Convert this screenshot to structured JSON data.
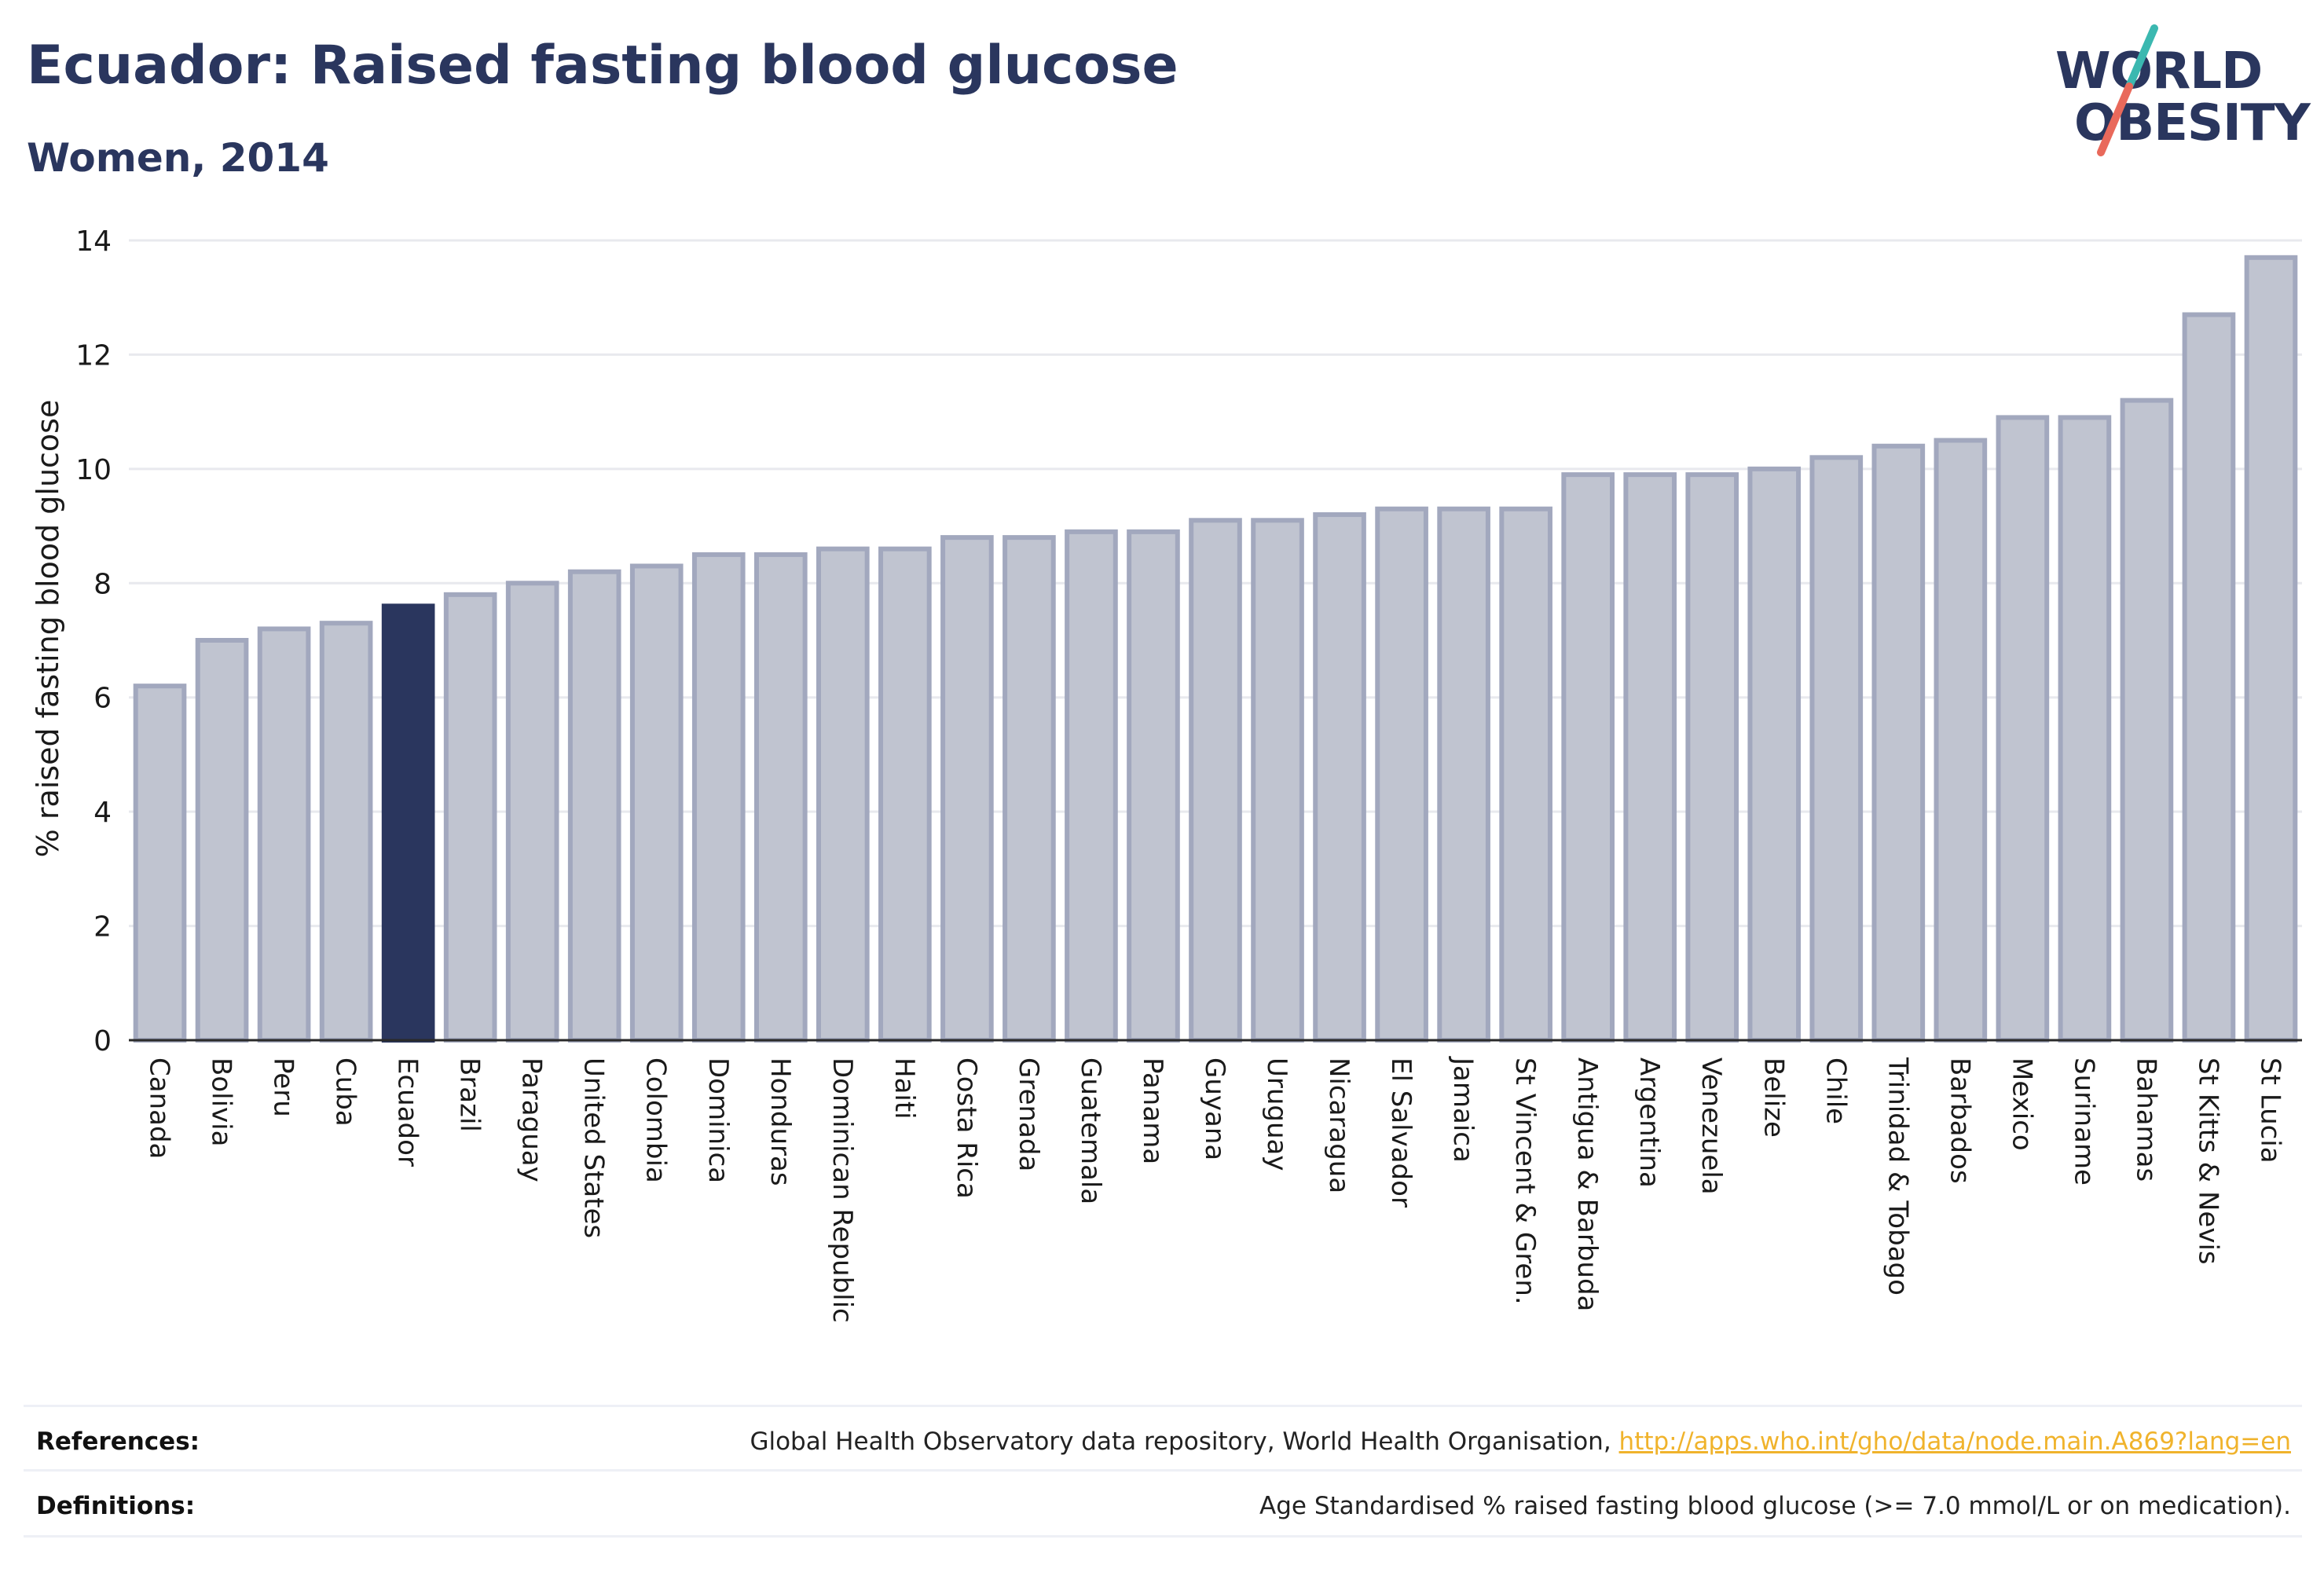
{
  "header": {
    "title": "Ecuador: Raised fasting blood glucose",
    "subtitle": "Women, 2014"
  },
  "logo": {
    "line1": "WORLD",
    "line2": "OBESITY",
    "text_color": "#2a365e",
    "slash_colors": [
      "#3bb8b0",
      "#e9695b"
    ]
  },
  "chart_data": {
    "type": "bar",
    "title": "Ecuador: Raised fasting blood glucose",
    "subtitle": "Women, 2014",
    "xlabel": "",
    "ylabel": "% raised fasting blood glucose",
    "ylim": [
      0,
      14
    ],
    "yticks": [
      0,
      2,
      4,
      6,
      8,
      10,
      12,
      14
    ],
    "grid": true,
    "highlight": "Ecuador",
    "colors": {
      "bar_fill": "#c0c4d0",
      "bar_stroke": "#a2a8be",
      "highlight_fill": "#2a365e"
    },
    "categories": [
      "Canada",
      "Bolivia",
      "Peru",
      "Cuba",
      "Ecuador",
      "Brazil",
      "Paraguay",
      "United States",
      "Colombia",
      "Dominica",
      "Honduras",
      "Dominican Republic",
      "Haiti",
      "Costa Rica",
      "Grenada",
      "Guatemala",
      "Panama",
      "Guyana",
      "Uruguay",
      "Nicaragua",
      "El Salvador",
      "Jamaica",
      "St Vincent & Gren.",
      "Antigua & Barbuda",
      "Argentina",
      "Venezuela",
      "Belize",
      "Chile",
      "Trinidad & Tobago",
      "Barbados",
      "Mexico",
      "Suriname",
      "Bahamas",
      "St Kitts & Nevis",
      "St Lucia"
    ],
    "values": [
      6.2,
      7.0,
      7.2,
      7.3,
      7.6,
      7.8,
      8.0,
      8.2,
      8.3,
      8.5,
      8.5,
      8.6,
      8.6,
      8.8,
      8.8,
      8.9,
      8.9,
      9.1,
      9.1,
      9.2,
      9.3,
      9.3,
      9.3,
      9.9,
      9.9,
      9.9,
      10.0,
      10.2,
      10.4,
      10.5,
      10.9,
      10.9,
      11.2,
      12.7,
      13.7
    ]
  },
  "footer": {
    "references_label": "References:",
    "references_text": "Global Health Observatory data repository, World Health Organisation, ",
    "references_link": "http://apps.who.int/gho/data/node.main.A869?lang=en",
    "definitions_label": "Definitions:",
    "definitions_text": "Age Standardised % raised fasting blood glucose (>= 7.0 mmol/L or on medication)."
  }
}
